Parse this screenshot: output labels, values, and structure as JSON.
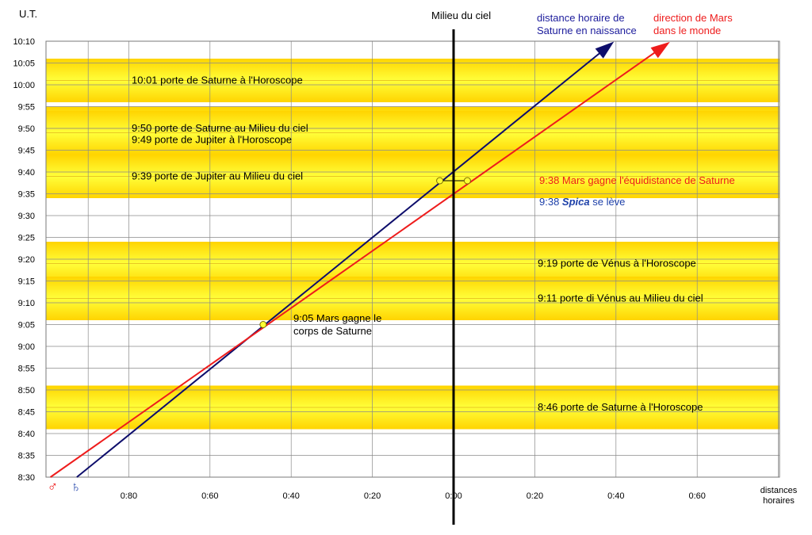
{
  "chart_data": {
    "type": "line",
    "title": "",
    "ylabel": "U.T.",
    "xlabel": "distances horaires",
    "y_unit": "minutes after 8:30",
    "ylim": [
      0,
      100
    ],
    "xlim": [
      -0.9,
      0.8
    ],
    "y_ticks": [
      {
        "v": 0,
        "label": "8:30"
      },
      {
        "v": 5,
        "label": "8:35"
      },
      {
        "v": 10,
        "label": "8:40"
      },
      {
        "v": 15,
        "label": "8:45"
      },
      {
        "v": 20,
        "label": "8:50"
      },
      {
        "v": 25,
        "label": "8:55"
      },
      {
        "v": 30,
        "label": "9:00"
      },
      {
        "v": 35,
        "label": "9:05"
      },
      {
        "v": 40,
        "label": "9:10"
      },
      {
        "v": 45,
        "label": "9:15"
      },
      {
        "v": 50,
        "label": "9:20"
      },
      {
        "v": 55,
        "label": "9:25"
      },
      {
        "v": 60,
        "label": "9:30"
      },
      {
        "v": 65,
        "label": "9:35"
      },
      {
        "v": 70,
        "label": "9:40"
      },
      {
        "v": 75,
        "label": "9:45"
      },
      {
        "v": 80,
        "label": "9:50"
      },
      {
        "v": 85,
        "label": "9:55"
      },
      {
        "v": 90,
        "label": "10:00"
      },
      {
        "v": 95,
        "label": "10:05"
      },
      {
        "v": 100,
        "label": "10:10"
      }
    ],
    "x_ticks": [
      {
        "v": -0.8,
        "label": "0:80"
      },
      {
        "v": -0.6,
        "label": "0:60"
      },
      {
        "v": -0.4,
        "label": "0:40"
      },
      {
        "v": -0.2,
        "label": "0:20"
      },
      {
        "v": 0.0,
        "label": "0:00"
      },
      {
        "v": 0.2,
        "label": "0:20"
      },
      {
        "v": 0.4,
        "label": "0:40"
      },
      {
        "v": 0.6,
        "label": "0:60"
      }
    ],
    "x_gridlines": [
      -0.9,
      -0.8,
      -0.6,
      -0.4,
      -0.2,
      0.0,
      0.2,
      0.4,
      0.6,
      0.8
    ],
    "meridian_label": "Milieu du ciel",
    "bands": [
      {
        "center": 91,
        "label": "10:01 porte de Saturne à l'Horoscope"
      },
      {
        "center": 80,
        "label": "9:50 porte de Saturne au Milieu du ciel"
      },
      {
        "center": 79,
        "label": "9:49 porte de Jupiter à l'Horoscope"
      },
      {
        "center": 69,
        "label": "9:39 porte de Jupiter au Milieu du ciel"
      },
      {
        "center": 49,
        "label": "9:19 porte de Vénus à l'Horoscope"
      },
      {
        "center": 41,
        "label": "9:11 porte di Vénus au Milieu du ciel"
      },
      {
        "center": 16,
        "label": "8:46 porte de Saturne à l'Horoscope"
      }
    ],
    "series": [
      {
        "name": "distance horaire de Saturne en naissance",
        "symbol": "♄",
        "color": "#0d0d6b",
        "points": [
          [
            -0.928,
            0
          ],
          [
            0.383,
            99
          ]
        ]
      },
      {
        "name": "direction de Mars dans le monde",
        "symbol": "♂",
        "color": "#ee1c1c",
        "points": [
          [
            -0.993,
            0
          ],
          [
            0.52,
            99
          ]
        ]
      }
    ],
    "events": [
      {
        "x": -0.469,
        "y": 35,
        "label": "9:05 Mars gagne le corps de Saturne",
        "label_lines": [
          "9:05 Mars gagne le",
          "corps de Saturne"
        ],
        "color": "#000000"
      },
      {
        "x": -0.034,
        "y": 68,
        "color": "#000000"
      },
      {
        "x": 0.034,
        "y": 68,
        "label": "9:38 Mars gagne l'équidistance de Saturne",
        "color": "#ee1c1c"
      }
    ],
    "notes": [
      {
        "label_time": "9:38",
        "label_star": "Spica",
        "label_rest": "se lève",
        "color": "#1c3fa8"
      }
    ]
  }
}
